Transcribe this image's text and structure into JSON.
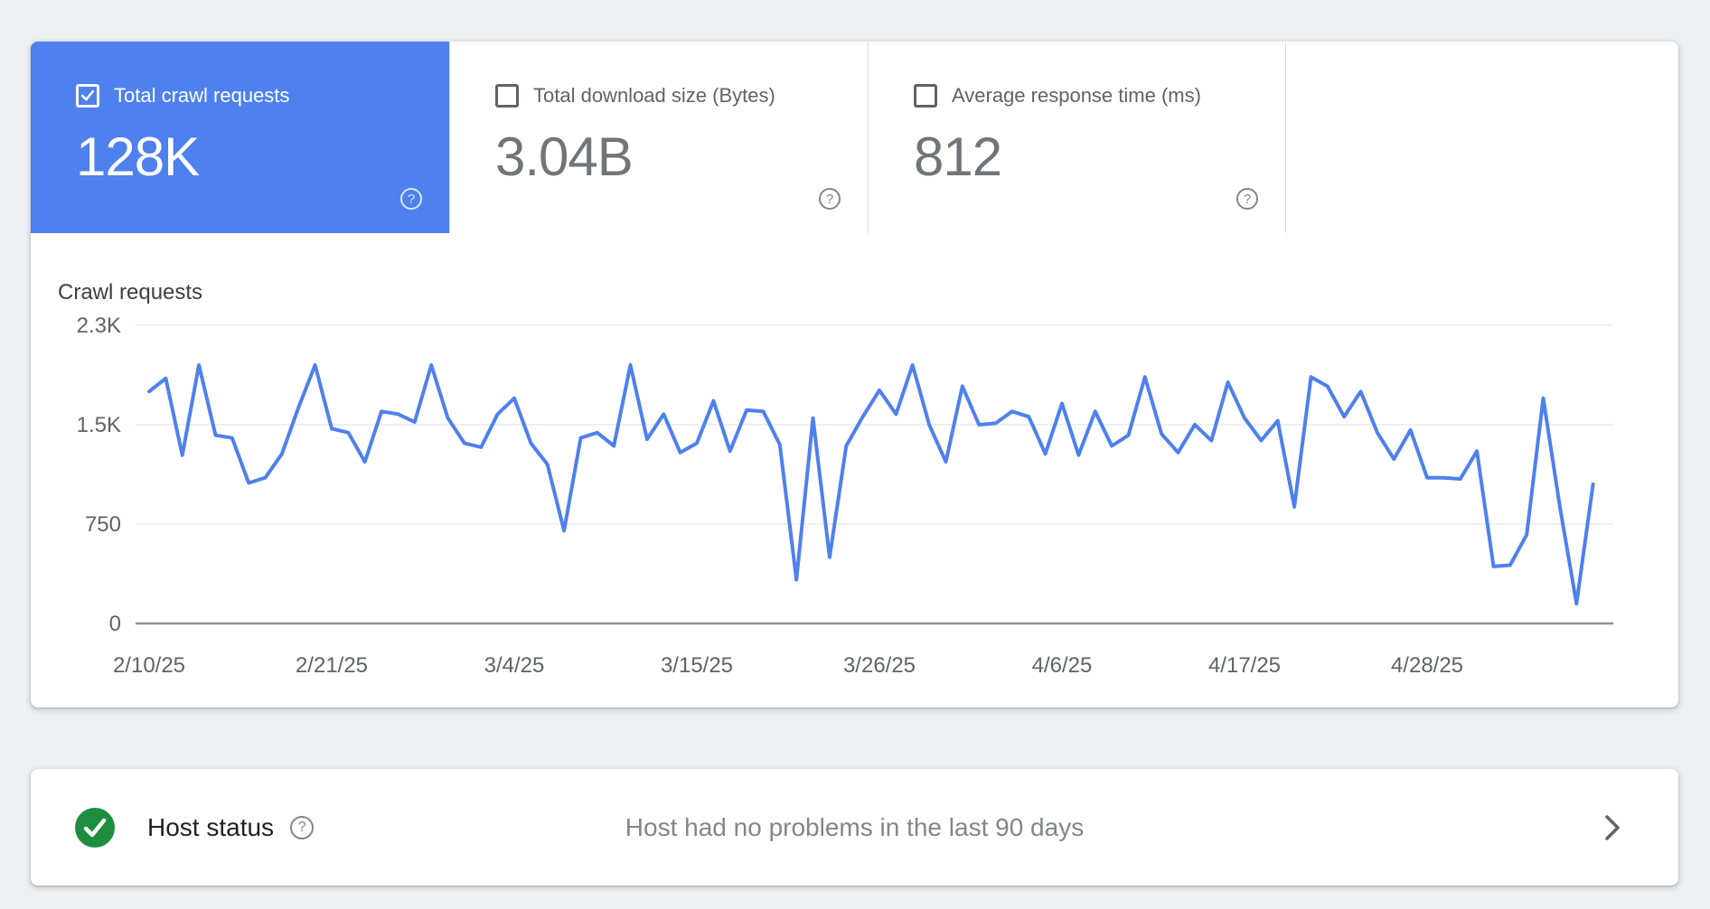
{
  "metrics": {
    "help_icon_glyph": "?",
    "cards": [
      {
        "label": "Total crawl requests",
        "value": "128K",
        "selected": true,
        "checkbox": "checked"
      },
      {
        "label": "Total download size (Bytes)",
        "value": "3.04B",
        "selected": false,
        "checkbox": "unchecked"
      },
      {
        "label": "Average response time (ms)",
        "value": "812",
        "selected": false,
        "checkbox": "unchecked"
      }
    ]
  },
  "chart_data": {
    "type": "line",
    "title": "Crawl requests",
    "xlabel": "",
    "ylabel": "",
    "grid": true,
    "legend": "none",
    "ylim": [
      0,
      2400
    ],
    "y_ticks": [
      {
        "label": "0",
        "value": 0
      },
      {
        "label": "750",
        "value": 750
      },
      {
        "label": "1.5K",
        "value": 1500
      },
      {
        "label": "2.3K",
        "value": 2250
      }
    ],
    "x_ticks": [
      {
        "label": "2/10/25",
        "day": 0
      },
      {
        "label": "2/21/25",
        "day": 11
      },
      {
        "label": "3/4/25",
        "day": 22
      },
      {
        "label": "3/15/25",
        "day": 33
      },
      {
        "label": "3/26/25",
        "day": 44
      },
      {
        "label": "4/6/25",
        "day": 55
      },
      {
        "label": "4/17/25",
        "day": 66
      },
      {
        "label": "4/28/25",
        "day": 77
      }
    ],
    "series": [
      {
        "name": "Total crawl requests",
        "color": "#4e80ee",
        "first_day_label": "2/10/25",
        "values": [
          1750,
          1850,
          1270,
          1950,
          1420,
          1400,
          1060,
          1100,
          1280,
          1630,
          1950,
          1470,
          1440,
          1220,
          1600,
          1580,
          1520,
          1950,
          1550,
          1360,
          1330,
          1580,
          1700,
          1360,
          1200,
          700,
          1400,
          1440,
          1340,
          1950,
          1390,
          1580,
          1290,
          1360,
          1680,
          1300,
          1610,
          1600,
          1350,
          330,
          1550,
          500,
          1340,
          1560,
          1760,
          1580,
          1950,
          1500,
          1220,
          1790,
          1500,
          1510,
          1600,
          1560,
          1280,
          1660,
          1270,
          1600,
          1340,
          1420,
          1860,
          1430,
          1290,
          1500,
          1380,
          1820,
          1550,
          1380,
          1530,
          880,
          1860,
          1790,
          1560,
          1750,
          1440,
          1240,
          1460,
          1100,
          1100,
          1090,
          1300,
          430,
          440,
          670,
          1700,
          880,
          150,
          1050
        ]
      }
    ]
  },
  "host_status": {
    "title": "Host status",
    "help_glyph": "?",
    "message": "Host had no problems in the last 90 days",
    "status": "ok"
  },
  "colors": {
    "page_bg": "#eef1f4",
    "selected_card_bg": "#4e80ee",
    "line": "#4e80ee",
    "grid": "#e9ebee",
    "axis": "#8a9096",
    "card_border": "#dadce0",
    "host_green": "#1e8e3e"
  }
}
